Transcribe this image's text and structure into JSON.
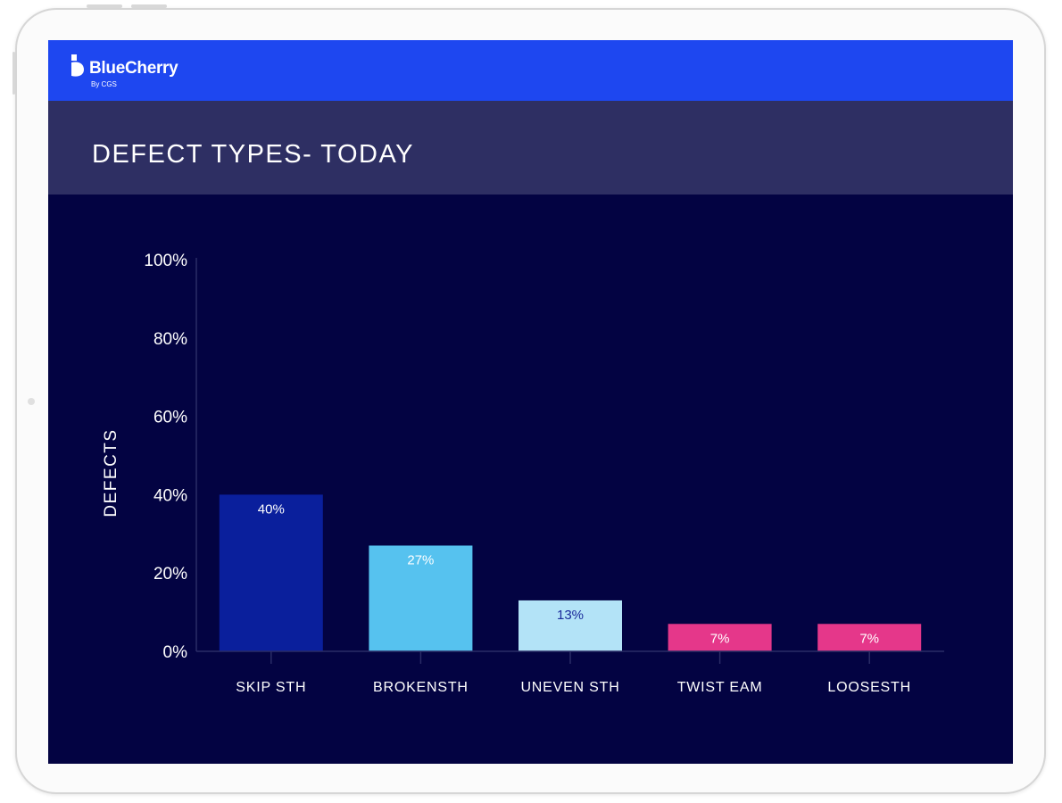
{
  "app": {
    "brand_name": "BlueCherry",
    "brand_sub": "By CGS"
  },
  "page": {
    "title": "DEFECT TYPES- TODAY"
  },
  "colors": {
    "header": "#1e47f0",
    "title_bar": "#2e2f63",
    "background": "#030342",
    "axis": "#2b2c66"
  },
  "chart_data": {
    "type": "bar",
    "title": "DEFECT TYPES- TODAY",
    "xlabel": "",
    "ylabel": "DEFECTS",
    "ylim": [
      0,
      100
    ],
    "yticks": [
      "0%",
      "20%",
      "40%",
      "60%",
      "80%",
      "100%"
    ],
    "ytick_values": [
      0,
      20,
      40,
      60,
      80,
      100
    ],
    "grid": false,
    "categories": [
      "SKIP STH",
      "BROKENSTH",
      "UNEVEN STH",
      "TWIST EAM",
      "LOOSESTH"
    ],
    "values": [
      40,
      27,
      13,
      7,
      7
    ],
    "data_labels": [
      "40%",
      "27%",
      "13%",
      "7%",
      "7%"
    ],
    "bar_colors": [
      "#0a1f9c",
      "#56c2ef",
      "#b3e3f7",
      "#e5378a",
      "#e5378a"
    ],
    "label_colors": [
      "#ffffff",
      "#ffffff",
      "#1a2a9a",
      "#ffffff",
      "#ffffff"
    ]
  }
}
